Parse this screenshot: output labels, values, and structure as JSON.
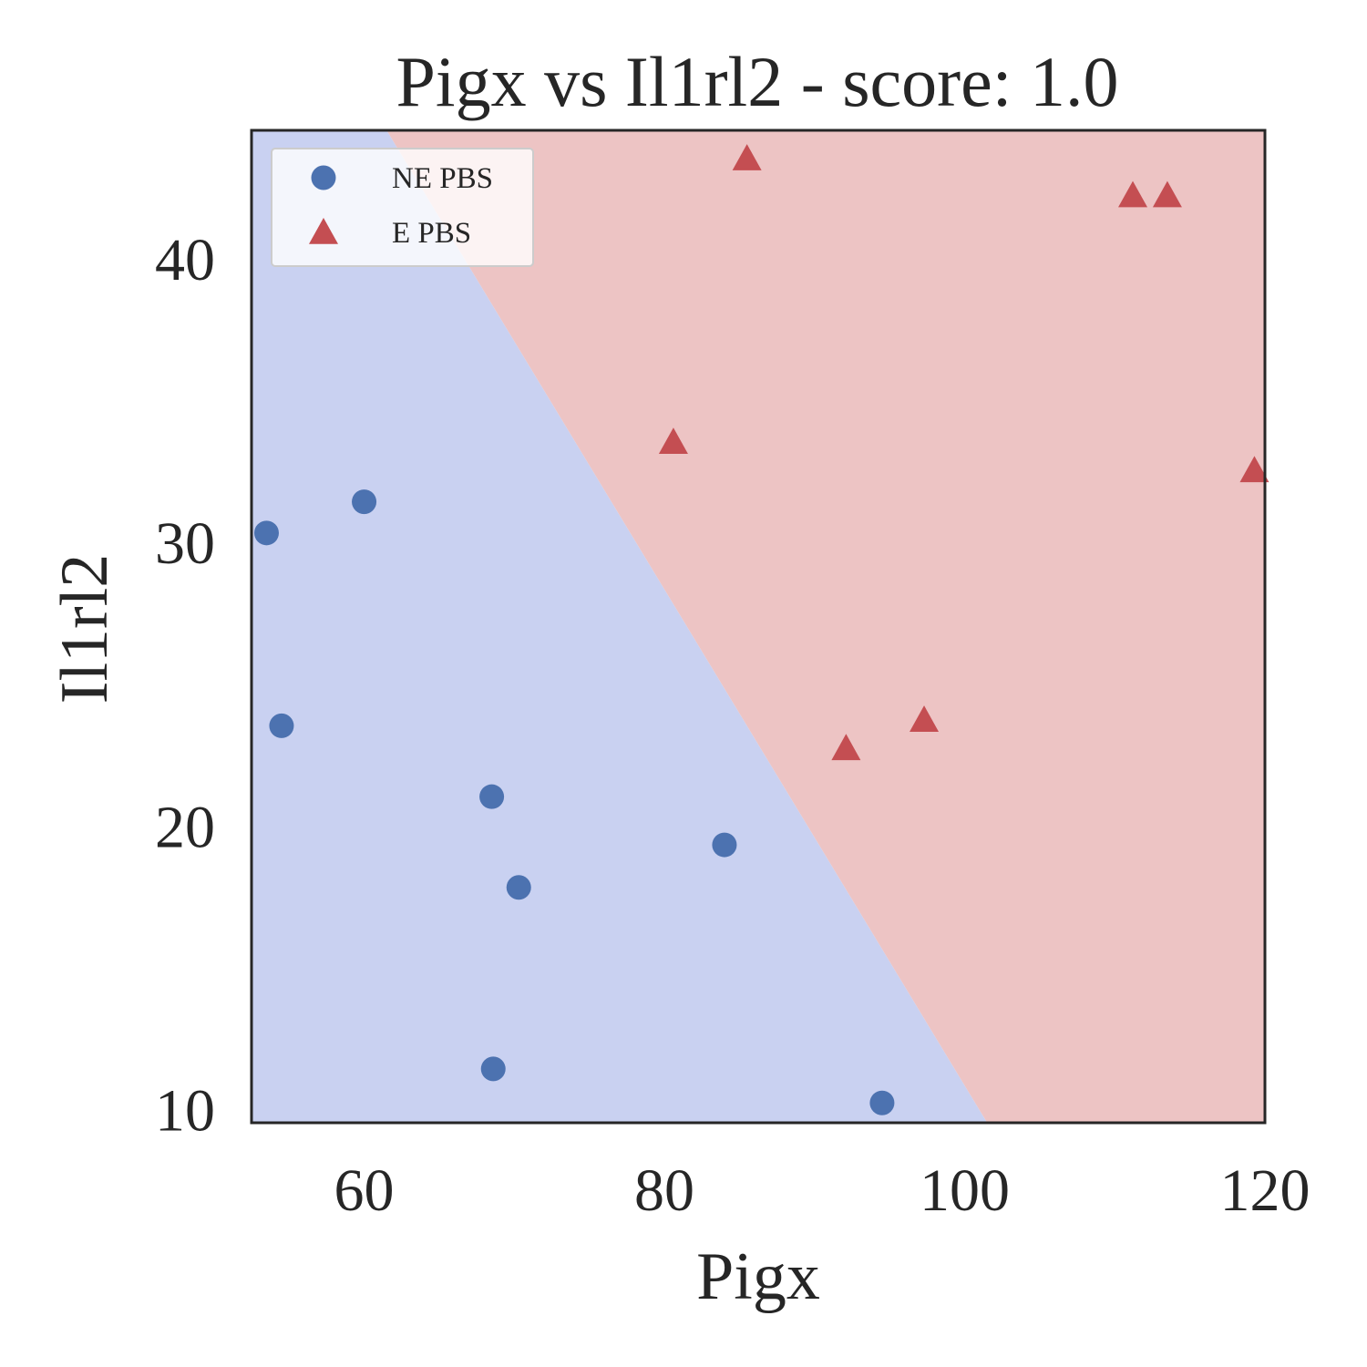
{
  "chart_data": {
    "type": "scatter",
    "title": "Pigx vs Il1rl2 - score: 1.0",
    "xlabel": "Pigx",
    "ylabel": "Il1rl2",
    "xlim": [
      52.5,
      120
    ],
    "ylim": [
      9.5,
      44.5
    ],
    "xticks": [
      60,
      80,
      100,
      120
    ],
    "yticks": [
      10,
      20,
      30,
      40
    ],
    "grid": false,
    "legend_position": "top-left",
    "decision_boundary": {
      "points": [
        [
          61.5,
          44.5
        ],
        [
          101.5,
          9.5
        ]
      ],
      "left_region_color": "#c9d1f1",
      "right_region_color": "#edc4c4"
    },
    "series": [
      {
        "name": "NE PBS",
        "marker": "circle",
        "color": "#4c72b0",
        "x": [
          53.5,
          54.5,
          60.0,
          68.5,
          70.3,
          68.6,
          84.0,
          94.5
        ],
        "y": [
          30.3,
          23.5,
          31.4,
          21.0,
          17.8,
          11.4,
          19.3,
          10.2
        ]
      },
      {
        "name": "E PBS",
        "marker": "triangle",
        "color": "#c44e52",
        "x": [
          85.5,
          80.6,
          92.1,
          97.3,
          111.2,
          113.5,
          119.3
        ],
        "y": [
          43.5,
          33.5,
          22.7,
          23.7,
          42.2,
          42.2,
          32.5
        ]
      }
    ]
  }
}
